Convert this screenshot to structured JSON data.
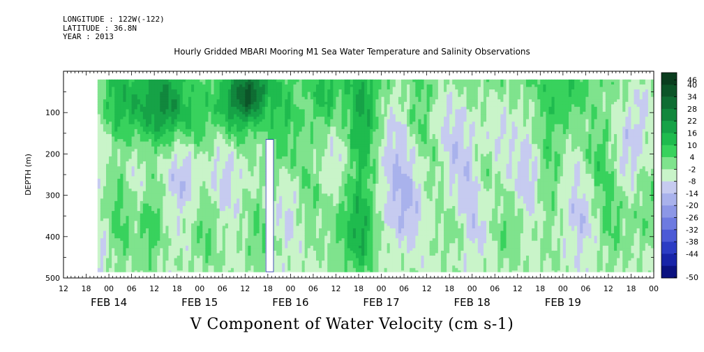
{
  "meta": {
    "longitude": "LONGITUDE : 122W(-122)",
    "latitude": "LATITUDE : 36.8N",
    "year": "YEAR : 2013"
  },
  "title": "Hourly Gridded MBARI Mooring M1 Sea Water Temperature and Salinity Observations",
  "bottom_title": "V Component of Water Velocity (cm s-1)",
  "chart_data": {
    "type": "heatmap",
    "title": "Hourly Gridded MBARI Mooring M1 Sea Water Temperature and Salinity Observations",
    "xlabel": "",
    "ylabel": "DEPTH (m)",
    "colorbar_label": "V Component of Water Velocity (cm s-1)",
    "x_unit": "hours since FEB 14 00:00 (display units: hour-of-day ticks + date labels)",
    "xlim": [
      -12,
      144
    ],
    "ylim": [
      500,
      0
    ],
    "y_inverted": true,
    "y_ticks": [
      100,
      200,
      300,
      400,
      500
    ],
    "x_hour_ticks": [
      "12",
      "18",
      "00",
      "06",
      "12",
      "18",
      "00",
      "06",
      "12",
      "18",
      "00",
      "06",
      "12",
      "18",
      "00",
      "06",
      "12",
      "18",
      "00",
      "06",
      "12",
      "18",
      "00",
      "06",
      "12",
      "18",
      "00"
    ],
    "x_hour_tick_positions": [
      -12,
      -6,
      0,
      6,
      12,
      18,
      24,
      30,
      36,
      42,
      48,
      54,
      60,
      66,
      72,
      78,
      84,
      90,
      96,
      102,
      108,
      114,
      120,
      126,
      132,
      138,
      144
    ],
    "date_labels": [
      "FEB 14",
      "FEB 15",
      "FEB 16",
      "FEB 17",
      "FEB 18",
      "FEB 19"
    ],
    "date_label_positions": [
      0,
      24,
      48,
      72,
      96,
      120
    ],
    "data_extent": {
      "x": [
        -3,
        144
      ],
      "y": [
        20,
        485
      ]
    },
    "gap": {
      "x": [
        41.5,
        43.5
      ],
      "y": [
        165,
        485
      ]
    },
    "levels": [
      46,
      40,
      34,
      28,
      22,
      16,
      10,
      4,
      -2,
      -8,
      -14,
      -20,
      -26,
      -32,
      -38,
      -44,
      -50
    ],
    "level_colors": [
      "#0a3d1e",
      "#0c5428",
      "#0f6d33",
      "#11873d",
      "#16a247",
      "#1fbb4e",
      "#38d25d",
      "#7fe38d",
      "#c9f4c9",
      "#c6cbf0",
      "#a9b2ec",
      "#8c97e6",
      "#6d7ae0",
      "#4c5ad6",
      "#2c3cc4",
      "#1824a8",
      "#0b1280"
    ],
    "colorbar_extreme_labels": [
      "46",
      "-50"
    ],
    "features": [
      {
        "x": -3,
        "y": 160,
        "sx": 3,
        "sy": 70,
        "v": -6
      },
      {
        "x": -3,
        "y": 420,
        "sx": 3,
        "sy": 60,
        "v": -6
      },
      {
        "x": 2,
        "y": 80,
        "sx": 3,
        "sy": 60,
        "v": 12
      },
      {
        "x": 3,
        "y": 340,
        "sx": 2.5,
        "sy": 90,
        "v": 13
      },
      {
        "x": 7,
        "y": 260,
        "sx": 3,
        "sy": 80,
        "v": -7
      },
      {
        "x": 10,
        "y": 90,
        "sx": 4,
        "sy": 70,
        "v": 16
      },
      {
        "x": 11,
        "y": 360,
        "sx": 2.5,
        "sy": 80,
        "v": 12
      },
      {
        "x": 16,
        "y": 80,
        "sx": 3,
        "sy": 60,
        "v": 18
      },
      {
        "x": 19,
        "y": 250,
        "sx": 3,
        "sy": 70,
        "v": -10
      },
      {
        "x": 23,
        "y": 120,
        "sx": 3,
        "sy": 55,
        "v": 10
      },
      {
        "x": 26,
        "y": 380,
        "sx": 2.5,
        "sy": 70,
        "v": 10
      },
      {
        "x": 30,
        "y": 260,
        "sx": 3,
        "sy": 90,
        "v": -8
      },
      {
        "x": 34,
        "y": 80,
        "sx": 4,
        "sy": 60,
        "v": 20
      },
      {
        "x": 38,
        "y": 50,
        "sx": 3,
        "sy": 40,
        "v": 22
      },
      {
        "x": 40,
        "y": 390,
        "sx": 3,
        "sy": 60,
        "v": 9
      },
      {
        "x": 46,
        "y": 120,
        "sx": 3,
        "sy": 80,
        "v": 11
      },
      {
        "x": 48,
        "y": 340,
        "sx": 3,
        "sy": 70,
        "v": -9
      },
      {
        "x": 52,
        "y": 300,
        "sx": 3,
        "sy": 80,
        "v": 9
      },
      {
        "x": 57,
        "y": 60,
        "sx": 2.5,
        "sy": 60,
        "v": 12
      },
      {
        "x": 63,
        "y": 360,
        "sx": 4,
        "sy": 90,
        "v": 10
      },
      {
        "x": 60,
        "y": 230,
        "sx": 3,
        "sy": 70,
        "v": -8
      },
      {
        "x": 67,
        "y": 120,
        "sx": 3,
        "sy": 110,
        "v": 18
      },
      {
        "x": 67,
        "y": 400,
        "sx": 2.5,
        "sy": 70,
        "v": 14
      },
      {
        "x": 76,
        "y": 200,
        "sx": 3.5,
        "sy": 110,
        "v": -10
      },
      {
        "x": 79,
        "y": 320,
        "sx": 3,
        "sy": 60,
        "v": -9
      },
      {
        "x": 82,
        "y": 110,
        "sx": 2.5,
        "sy": 60,
        "v": 8
      },
      {
        "x": 87,
        "y": 230,
        "sx": 3,
        "sy": 60,
        "v": 10
      },
      {
        "x": 90,
        "y": 180,
        "sx": 3.5,
        "sy": 100,
        "v": -12
      },
      {
        "x": 92,
        "y": 370,
        "sx": 3,
        "sy": 60,
        "v": 9
      },
      {
        "x": 96,
        "y": 320,
        "sx": 3,
        "sy": 90,
        "v": -13
      },
      {
        "x": 99,
        "y": 250,
        "sx": 2.5,
        "sy": 60,
        "v": 10
      },
      {
        "x": 103,
        "y": 150,
        "sx": 3,
        "sy": 70,
        "v": -7
      },
      {
        "x": 106,
        "y": 380,
        "sx": 3,
        "sy": 60,
        "v": 9
      },
      {
        "x": 111,
        "y": 260,
        "sx": 3,
        "sy": 90,
        "v": -10
      },
      {
        "x": 116,
        "y": 200,
        "sx": 2.5,
        "sy": 140,
        "v": 10
      },
      {
        "x": 122,
        "y": 60,
        "sx": 3,
        "sy": 50,
        "v": 8
      },
      {
        "x": 125,
        "y": 320,
        "sx": 3,
        "sy": 90,
        "v": -10
      },
      {
        "x": 129,
        "y": 220,
        "sx": 3,
        "sy": 70,
        "v": 11
      },
      {
        "x": 133,
        "y": 350,
        "sx": 3,
        "sy": 80,
        "v": 9
      },
      {
        "x": 137,
        "y": 200,
        "sx": 3,
        "sy": 80,
        "v": -9
      },
      {
        "x": 141,
        "y": 70,
        "sx": 2.5,
        "sy": 60,
        "v": -8
      },
      {
        "x": 142,
        "y": 330,
        "sx": 2.5,
        "sy": 70,
        "v": 7
      }
    ]
  }
}
